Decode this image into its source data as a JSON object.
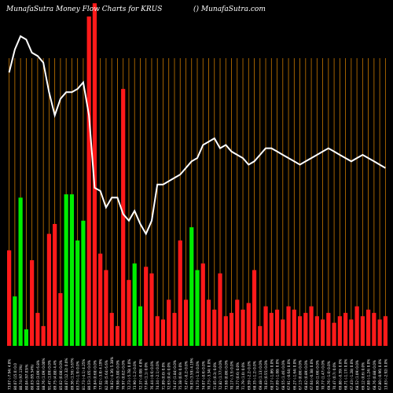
{
  "header": {
    "title": "MunafaSutra  Money Flow  Charts for KRUS",
    "site": "() MunafaSutra.com"
  },
  "colors": {
    "background": "#000000",
    "up": "#00ee00",
    "down": "#ff1a1a",
    "gridline": "#c87800",
    "line": "#ffffff",
    "text": "#ffffff"
  },
  "chart_data": {
    "type": "bar",
    "title": "MunafaSutra  Money Flow  Charts for KRUS",
    "categories": [
      "03 Fri Apr 2025",
      "07 Mon Apr 2025",
      "09 Wed Apr 2025",
      "10 Thu Apr 2025",
      "11 Fri Apr 2025",
      "14 Mon Apr 2025",
      "15 Tue Apr 2025",
      "16 Wed Apr 2025",
      "17 Thu Apr 2025",
      "21 Mon Apr 2025",
      "22 Tue Apr 2025",
      "23 Wed Apr 2025",
      "24 Thu Apr 2025",
      "25 Fri Apr 2025",
      "28 Mon Apr 2025",
      "29 Tue Apr 2025",
      "30 Wed Apr 2025",
      "01 Thu May 2025",
      "02 Fri May 2025",
      "05 Mon May 2025",
      "06 Tue May 2025",
      "07 Wed May 2025",
      "08 Thu May 2025",
      "09 Fri May 2025",
      "12 Mon May 2025",
      "13 Tue May 2025",
      "14 Wed May 2025",
      "15 Thu May 2025",
      "16 Fri May 2025",
      "19 Mon May 2025",
      "20 Tue May 2025",
      "21 Wed May 2025",
      "22 Thu May 2025",
      "23 Fri May 2025",
      "27 Tue May 2025",
      "28 Wed May 2025",
      "29 Thu May 2025",
      "30 Fri May 2025",
      "02 Mon Jun 2025",
      "03 Tue Jun 2025",
      "04 Wed Jun 2025",
      "05 Thu Jun 2025",
      "06 Fri Jun 2025",
      "09 Mon Jun 2025",
      "10 Tue Jun 2025",
      "11 Wed Jun 2025",
      "12 Thu Jun 2025",
      "13 Fri Jun 2025",
      "16 Mon Jun 2025",
      "17 Tue Jun 2025",
      "18 Wed Jun 2025",
      "20 Fri Jun 2025",
      "23 Mon Jun 2025",
      "24 Tue Jun 2025",
      "25 Wed Jun 2025",
      "26 Thu Jun 2025",
      "27 Fri Jun 2025",
      "30 Mon Jun 2025",
      "01 Tue Jul 2025",
      "02 Wed Jul 2025",
      "03 Thu Jul 2025",
      "07 Mon Jul 2025",
      "08 Tue Jul 2025",
      "09 Wed Jul 2025",
      "10 Thu Jul 2025",
      "11 Fri Jul 2025",
      "14 Mon Jul 2025"
    ],
    "x_labels": [
      "73.67 (-7.94) 4.8%",
      "80.07 (15.0) 0.0",
      "80.74 (97.13%)",
      "80.04 (97.03)%",
      "80.03 (95.54%)",
      "84.03 (3.09) 6.8%",
      "88.76 (1.09) 0.00%",
      "91.47 (1.09) 0.0%",
      "89.75 (4.88) 4.4%",
      "85.02 (0.08) 0.0%",
      "88.07 (12.32) 0.0%",
      "89.56 (1.56) 3.67%",
      "83.73 (-1.9) 0.0%",
      "81.73 (-4.1) 4.25%",
      "80.53 (1.05) 0.0%",
      "79.84 (0.68) 0.0%",
      "77.02 (-3.8) 4.19%",
      "82.38 (5.64) 6.6%",
      "78.02 (-4.36) 5.38%",
      "79.98 (5.00) 0.0%",
      "76.97 (0.02) 0.0%",
      "72.73 (-5.78) 0.0%",
      "73.90 (-1.2) 0.0%",
      "72.37 (-0.08) 4.8%",
      "77.04 (1.1) 0.0%",
      "76.44 (-0.6) 0.0%",
      "74.34 (-2.1) 0.0%",
      "71.89 (0.0) 0.0%",
      "72.63 (0.4) 0.0%",
      "74.47 (1.84) 0.0%",
      "75.38 (0.9) 0.0%",
      "72.47 (-0.2) 0.0%",
      "76.03 (3.59) 4.19%",
      "74.73 (-1.3) 0.0%",
      "74.07 (-0.6) 0.0%",
      "70.73 (-3.34) 0.0%",
      "71.05 (0.3) 0.0%",
      "72.82 (1.77) 0.0%",
      "73.68 (0.86) 0.0%",
      "70.17 (-3.5) 0.0%",
      "70.77 (0.6) 0.0%",
      "71.79 (1.0) 0.0%",
      "69.59 (-2.2) 0.0%",
      "68.35 (-1.2) 0.0%",
      "69.48 (1.13) 0.0%",
      "70.03 (0.55) 0.0%",
      "68.17 (-1.86) 0.0%",
      "67.09 (-1.08) 0.0%",
      "68.55 (1.46) 0.0%",
      "67.91 (-0.64) 0.0%",
      "66.27 (-1.64) 0.0%",
      "67.13 (0.86) 0.0%",
      "68.02 (0.89) 0.0%",
      "67.64 (-0.38) 0.0%",
      "69.30 (1.66) 0.0%",
      "70.77 (1.47) 0.0%",
      "69.76 (-1.0) 0.0%",
      "70.47 (0.7) 0.0%",
      "69.88 (-0.59) 0.0%",
      "68.71 (-1.17) 0.0%",
      "67.43 (-1.28) 0.0%",
      "68.52 (1.09) 0.0%",
      "69.12 (0.6) 0.0%",
      "67.88 (-1.24) 0.0%",
      "68.76 (0.88) 0.0%",
      "67.80 (-0.96) 0.0%",
      "13.83 (-2.92) 0.0%"
    ],
    "values": [
      29,
      15,
      45,
      5,
      26,
      10,
      6,
      34,
      37,
      16,
      46,
      46,
      32,
      38,
      100,
      104,
      28,
      23,
      10,
      6,
      78,
      20,
      25,
      12,
      24,
      22,
      9,
      8,
      14,
      10,
      32,
      14,
      36,
      23,
      25,
      14,
      11,
      22,
      9,
      10,
      14,
      11,
      13,
      23,
      6,
      12,
      10,
      11,
      8,
      12,
      11,
      9,
      10,
      12,
      9,
      8,
      10,
      7,
      9,
      10,
      8,
      12,
      9,
      11,
      10,
      8,
      9
    ],
    "bar_direction": [
      "down",
      "up",
      "up",
      "up",
      "down",
      "down",
      "down",
      "down",
      "down",
      "down",
      "up",
      "up",
      "up",
      "up",
      "down",
      "down",
      "down",
      "down",
      "down",
      "down",
      "down",
      "down",
      "up",
      "up",
      "down",
      "down",
      "down",
      "down",
      "down",
      "down",
      "down",
      "down",
      "up",
      "up",
      "down",
      "down",
      "down",
      "down",
      "down",
      "down",
      "down",
      "down",
      "down",
      "down",
      "down",
      "down",
      "down",
      "down",
      "down",
      "down",
      "down",
      "down",
      "down",
      "down",
      "down",
      "down",
      "down",
      "down",
      "down",
      "down",
      "down",
      "down",
      "down",
      "down",
      "down",
      "down",
      "down"
    ],
    "line": [
      83,
      90,
      94,
      93,
      89,
      88,
      86,
      77,
      70,
      75,
      77,
      77,
      78,
      80,
      70,
      48,
      47,
      42,
      45,
      45,
      40,
      38,
      41,
      37,
      34,
      38,
      49,
      49,
      50,
      51,
      52,
      54,
      56,
      57,
      61,
      62,
      63,
      60,
      61,
      59,
      58,
      57,
      55,
      56,
      58,
      60,
      60,
      59,
      58,
      57,
      56,
      55,
      56,
      57,
      58,
      59,
      60,
      59,
      58,
      57,
      56,
      57,
      58,
      57,
      56,
      55,
      54
    ],
    "ylim": [
      0,
      105
    ],
    "grid": true,
    "legend": "none"
  }
}
